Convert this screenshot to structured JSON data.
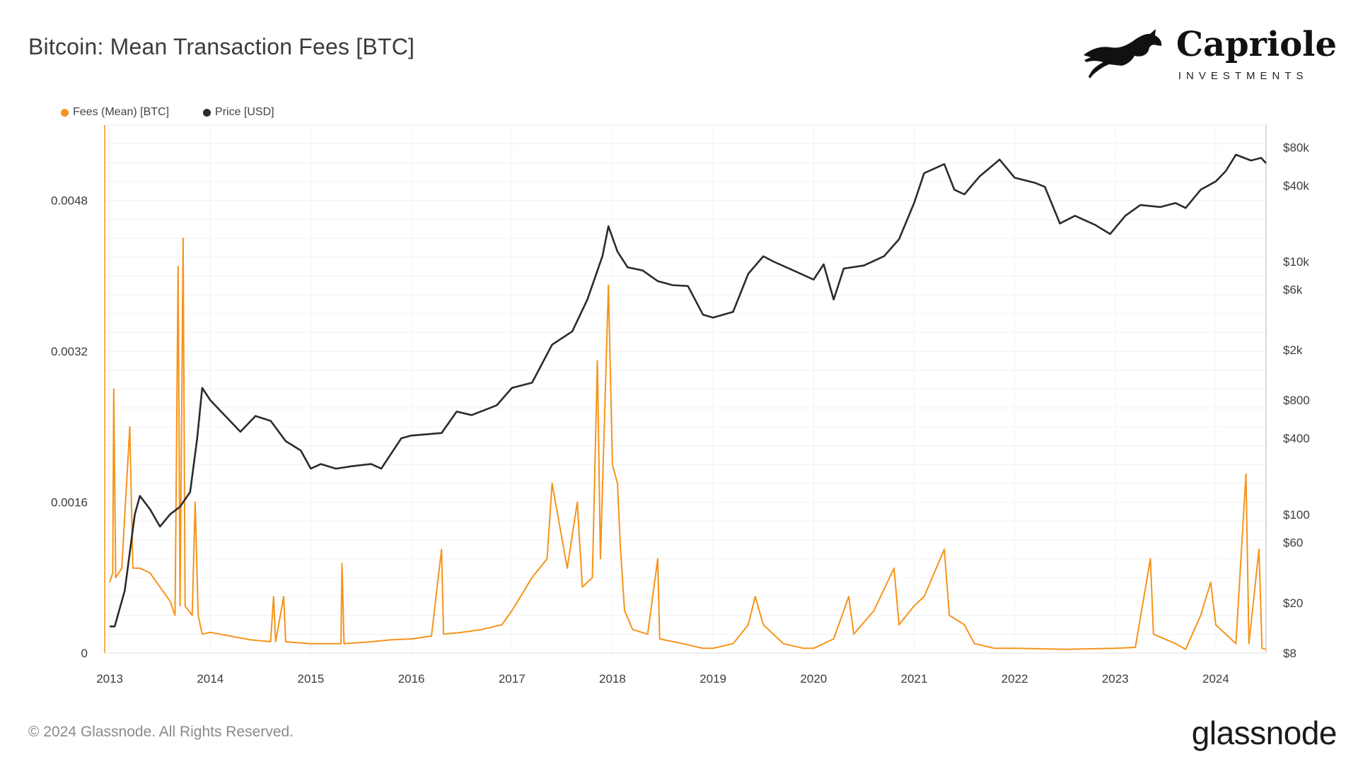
{
  "header": {
    "title": "Bitcoin: Mean Transaction Fees [BTC]"
  },
  "brand": {
    "name": "Capriole",
    "subtitle": "INVESTMENTS",
    "logo_icon": "horse-icon"
  },
  "footer": {
    "copyright": "© 2024 Glassnode. All Rights Reserved.",
    "logo_text": "glassnode"
  },
  "legend": [
    {
      "label": "Fees (Mean) [BTC]",
      "color": "#f7931a"
    },
    {
      "label": "Price [USD]",
      "color": "#2b2b2b"
    }
  ],
  "chart_data": {
    "type": "line",
    "title": "Bitcoin: Mean Transaction Fees [BTC]",
    "xlabel": "",
    "ylabel_left": "",
    "ylabel_right": "",
    "xlim": [
      2012.95,
      2024.5
    ],
    "x_ticks": [
      "2013",
      "2014",
      "2015",
      "2016",
      "2017",
      "2018",
      "2019",
      "2020",
      "2021",
      "2022",
      "2023",
      "2024"
    ],
    "ylim_left": [
      0,
      0.0056
    ],
    "y_left_ticks": [
      {
        "value": 0,
        "label": "0"
      },
      {
        "value": 0.0016,
        "label": "0.0016"
      },
      {
        "value": 0.0032,
        "label": "0.0032"
      },
      {
        "value": 0.0048,
        "label": "0.0048"
      }
    ],
    "y_right_scale": "log",
    "ylim_right": [
      8,
      120000
    ],
    "y_right_ticks": [
      {
        "value": 8,
        "label": "$8"
      },
      {
        "value": 20,
        "label": "$20"
      },
      {
        "value": 60,
        "label": "$60"
      },
      {
        "value": 100,
        "label": "$100"
      },
      {
        "value": 400,
        "label": "$400"
      },
      {
        "value": 800,
        "label": "$800"
      },
      {
        "value": 2000,
        "label": "$2k"
      },
      {
        "value": 6000,
        "label": "$6k"
      },
      {
        "value": 10000,
        "label": "$10k"
      },
      {
        "value": 40000,
        "label": "$40k"
      },
      {
        "value": 80000,
        "label": "$80k"
      }
    ],
    "grid": true,
    "legend_position": "top-left",
    "series": [
      {
        "name": "Fees (Mean) [BTC]",
        "axis": "left",
        "color": "#f7931a",
        "points": [
          [
            2013.0,
            0.00075
          ],
          [
            2013.03,
            0.00085
          ],
          [
            2013.04,
            0.0028
          ],
          [
            2013.06,
            0.0008
          ],
          [
            2013.12,
            0.0009
          ],
          [
            2013.2,
            0.0024
          ],
          [
            2013.23,
            0.0009
          ],
          [
            2013.3,
            0.0009
          ],
          [
            2013.4,
            0.00085
          ],
          [
            2013.5,
            0.0007
          ],
          [
            2013.6,
            0.00055
          ],
          [
            2013.65,
            0.0004
          ],
          [
            2013.68,
            0.0041
          ],
          [
            2013.7,
            0.0005
          ],
          [
            2013.73,
            0.0044
          ],
          [
            2013.75,
            0.0005
          ],
          [
            2013.82,
            0.0004
          ],
          [
            2013.85,
            0.0016
          ],
          [
            2013.88,
            0.0004
          ],
          [
            2013.92,
            0.0002
          ],
          [
            2014.0,
            0.00022
          ],
          [
            2014.2,
            0.00018
          ],
          [
            2014.4,
            0.00014
          ],
          [
            2014.6,
            0.00012
          ],
          [
            2014.63,
            0.0006
          ],
          [
            2014.65,
            0.00012
          ],
          [
            2014.73,
            0.0006
          ],
          [
            2014.75,
            0.00012
          ],
          [
            2015.0,
            0.0001
          ],
          [
            2015.3,
            0.0001
          ],
          [
            2015.31,
            0.00095
          ],
          [
            2015.33,
            0.0001
          ],
          [
            2015.6,
            0.00012
          ],
          [
            2015.8,
            0.00014
          ],
          [
            2016.0,
            0.00015
          ],
          [
            2016.2,
            0.00018
          ],
          [
            2016.3,
            0.0011
          ],
          [
            2016.32,
            0.0002
          ],
          [
            2016.5,
            0.00022
          ],
          [
            2016.7,
            0.00025
          ],
          [
            2016.9,
            0.0003
          ],
          [
            2017.0,
            0.00045
          ],
          [
            2017.2,
            0.0008
          ],
          [
            2017.35,
            0.001
          ],
          [
            2017.4,
            0.0018
          ],
          [
            2017.45,
            0.0015
          ],
          [
            2017.55,
            0.0009
          ],
          [
            2017.65,
            0.0016
          ],
          [
            2017.7,
            0.0007
          ],
          [
            2017.8,
            0.0008
          ],
          [
            2017.85,
            0.0031
          ],
          [
            2017.88,
            0.001
          ],
          [
            2017.96,
            0.0039
          ],
          [
            2018.0,
            0.002
          ],
          [
            2018.05,
            0.0018
          ],
          [
            2018.08,
            0.0011
          ],
          [
            2018.12,
            0.00045
          ],
          [
            2018.2,
            0.00025
          ],
          [
            2018.35,
            0.0002
          ],
          [
            2018.45,
            0.001
          ],
          [
            2018.47,
            0.00015
          ],
          [
            2018.7,
            0.0001
          ],
          [
            2018.9,
            5e-05
          ],
          [
            2019.0,
            5e-05
          ],
          [
            2019.2,
            0.0001
          ],
          [
            2019.35,
            0.0003
          ],
          [
            2019.42,
            0.0006
          ],
          [
            2019.5,
            0.0003
          ],
          [
            2019.7,
            0.0001
          ],
          [
            2019.9,
            5e-05
          ],
          [
            2020.0,
            5e-05
          ],
          [
            2020.2,
            0.00015
          ],
          [
            2020.35,
            0.0006
          ],
          [
            2020.4,
            0.0002
          ],
          [
            2020.6,
            0.00045
          ],
          [
            2020.8,
            0.0009
          ],
          [
            2020.85,
            0.0003
          ],
          [
            2021.0,
            0.0005
          ],
          [
            2021.1,
            0.0006
          ],
          [
            2021.3,
            0.0011
          ],
          [
            2021.35,
            0.0004
          ],
          [
            2021.5,
            0.0003
          ],
          [
            2021.6,
            0.0001
          ],
          [
            2021.8,
            5e-05
          ],
          [
            2022.0,
            5e-05
          ],
          [
            2022.5,
            4e-05
          ],
          [
            2023.0,
            5e-05
          ],
          [
            2023.2,
            6e-05
          ],
          [
            2023.35,
            0.001
          ],
          [
            2023.38,
            0.0002
          ],
          [
            2023.6,
            0.0001
          ],
          [
            2023.7,
            4e-05
          ],
          [
            2023.85,
            0.0004
          ],
          [
            2023.95,
            0.00075
          ],
          [
            2024.0,
            0.0003
          ],
          [
            2024.2,
            0.0001
          ],
          [
            2024.3,
            0.0019
          ],
          [
            2024.33,
            0.0001
          ],
          [
            2024.43,
            0.0011
          ],
          [
            2024.46,
            5e-05
          ],
          [
            2024.5,
            4e-05
          ]
        ]
      },
      {
        "name": "Price [USD]",
        "axis": "right",
        "color": "#2b2b2b",
        "points": [
          [
            2013.0,
            13
          ],
          [
            2013.05,
            13
          ],
          [
            2013.15,
            25
          ],
          [
            2013.25,
            100
          ],
          [
            2013.3,
            140
          ],
          [
            2013.4,
            110
          ],
          [
            2013.5,
            80
          ],
          [
            2013.6,
            100
          ],
          [
            2013.7,
            115
          ],
          [
            2013.8,
            150
          ],
          [
            2013.87,
            400
          ],
          [
            2013.92,
            1000
          ],
          [
            2014.0,
            800
          ],
          [
            2014.15,
            600
          ],
          [
            2014.3,
            450
          ],
          [
            2014.45,
            600
          ],
          [
            2014.6,
            550
          ],
          [
            2014.75,
            380
          ],
          [
            2014.9,
            320
          ],
          [
            2015.0,
            230
          ],
          [
            2015.1,
            250
          ],
          [
            2015.25,
            230
          ],
          [
            2015.4,
            240
          ],
          [
            2015.6,
            250
          ],
          [
            2015.7,
            230
          ],
          [
            2015.9,
            400
          ],
          [
            2016.0,
            420
          ],
          [
            2016.3,
            440
          ],
          [
            2016.45,
            650
          ],
          [
            2016.6,
            610
          ],
          [
            2016.85,
            730
          ],
          [
            2017.0,
            1000
          ],
          [
            2017.2,
            1100
          ],
          [
            2017.4,
            2200
          ],
          [
            2017.6,
            2800
          ],
          [
            2017.75,
            5000
          ],
          [
            2017.9,
            11000
          ],
          [
            2017.96,
            19000
          ],
          [
            2018.05,
            12000
          ],
          [
            2018.15,
            9000
          ],
          [
            2018.3,
            8500
          ],
          [
            2018.45,
            7000
          ],
          [
            2018.6,
            6500
          ],
          [
            2018.75,
            6400
          ],
          [
            2018.9,
            3800
          ],
          [
            2019.0,
            3600
          ],
          [
            2019.2,
            4000
          ],
          [
            2019.35,
            8000
          ],
          [
            2019.5,
            11000
          ],
          [
            2019.6,
            10000
          ],
          [
            2019.8,
            8500
          ],
          [
            2020.0,
            7200
          ],
          [
            2020.1,
            9500
          ],
          [
            2020.2,
            5000
          ],
          [
            2020.3,
            8800
          ],
          [
            2020.5,
            9300
          ],
          [
            2020.7,
            11000
          ],
          [
            2020.85,
            15000
          ],
          [
            2021.0,
            29000
          ],
          [
            2021.1,
            50000
          ],
          [
            2021.3,
            59000
          ],
          [
            2021.4,
            37000
          ],
          [
            2021.5,
            34000
          ],
          [
            2021.65,
            47000
          ],
          [
            2021.85,
            64000
          ],
          [
            2022.0,
            46000
          ],
          [
            2022.2,
            42000
          ],
          [
            2022.3,
            39000
          ],
          [
            2022.45,
            20000
          ],
          [
            2022.6,
            23000
          ],
          [
            2022.8,
            19500
          ],
          [
            2022.95,
            16500
          ],
          [
            2023.1,
            23000
          ],
          [
            2023.25,
            28000
          ],
          [
            2023.45,
            27000
          ],
          [
            2023.6,
            29000
          ],
          [
            2023.7,
            26500
          ],
          [
            2023.85,
            37000
          ],
          [
            2024.0,
            43000
          ],
          [
            2024.1,
            52000
          ],
          [
            2024.2,
            70000
          ],
          [
            2024.35,
            63000
          ],
          [
            2024.45,
            66000
          ],
          [
            2024.5,
            60000
          ]
        ]
      }
    ]
  }
}
